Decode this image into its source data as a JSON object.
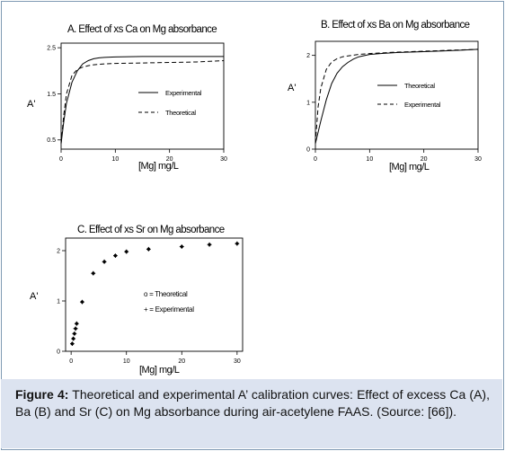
{
  "caption": {
    "label": "Figure 4:",
    "text": " Theoretical and experimental A’ calibration curves: Effect of excess Ca (A), Ba (B) and Sr (C) on Mg absorbance during air-acetylene FAAS. (Source: [66])."
  },
  "chart_data": [
    {
      "id": "A",
      "type": "line",
      "title": "A. Effect of xs Ca on Mg absorbance",
      "xlabel": "[Mg] mg/L",
      "ylabel": "A'",
      "xlim": [
        0,
        30
      ],
      "ylim": [
        0.3,
        2.6
      ],
      "xticks": [
        0,
        10,
        20,
        30
      ],
      "yticks": [
        0.5,
        1.5,
        2.5
      ],
      "xtick_labels": [
        "0",
        "10",
        "20",
        "30"
      ],
      "ytick_labels": [
        "0.5",
        "1.5",
        "2.5"
      ],
      "legend_position": "center-right",
      "series": [
        {
          "name": "Experimental",
          "style": "solid",
          "x": [
            0,
            0.5,
            1,
            2,
            3,
            4,
            5,
            6,
            7,
            8,
            10,
            15,
            20,
            25,
            30
          ],
          "y": [
            0.42,
            0.9,
            1.3,
            1.75,
            2.0,
            2.15,
            2.22,
            2.26,
            2.28,
            2.29,
            2.3,
            2.31,
            2.31,
            2.31,
            2.31
          ]
        },
        {
          "name": "Theoretical",
          "style": "dashed",
          "x": [
            0,
            0.5,
            1,
            2,
            3,
            4,
            5,
            6,
            8,
            10,
            15,
            20,
            25,
            30
          ],
          "y": [
            0.42,
            1.05,
            1.5,
            1.9,
            2.03,
            2.08,
            2.11,
            2.13,
            2.15,
            2.16,
            2.17,
            2.18,
            2.19,
            2.22
          ]
        }
      ]
    },
    {
      "id": "B",
      "type": "line",
      "title": "B. Effect of xs Ba on Mg absorbance",
      "xlabel": "[Mg] mg/L",
      "ylabel": "A'",
      "xlim": [
        0,
        30
      ],
      "ylim": [
        0,
        2.3
      ],
      "xticks": [
        0,
        10,
        20,
        30
      ],
      "yticks": [
        0,
        1,
        2
      ],
      "xtick_labels": [
        "0",
        "10",
        "20",
        "30"
      ],
      "ytick_labels": [
        "0",
        "1",
        "2"
      ],
      "legend_position": "center-right",
      "series": [
        {
          "name": "Theoretical",
          "style": "solid",
          "x": [
            0,
            1,
            2,
            3,
            4,
            5,
            6,
            7,
            8,
            10,
            12,
            15,
            20,
            25,
            30
          ],
          "y": [
            0.12,
            0.6,
            1.05,
            1.4,
            1.62,
            1.76,
            1.85,
            1.92,
            1.97,
            2.02,
            2.04,
            2.06,
            2.08,
            2.1,
            2.13
          ]
        },
        {
          "name": "Experimental",
          "style": "dashed",
          "x": [
            0,
            0.5,
            1,
            2,
            3,
            4,
            5,
            6,
            8,
            10,
            15,
            20,
            25,
            30
          ],
          "y": [
            0.12,
            0.9,
            1.3,
            1.7,
            1.86,
            1.93,
            1.97,
            1.99,
            2.02,
            2.04,
            2.07,
            2.09,
            2.11,
            2.13
          ]
        }
      ]
    },
    {
      "id": "C",
      "type": "scatter",
      "title": "C. Effect of xs Sr on Mg absorbance",
      "xlabel": "[Mg] mg/L",
      "ylabel": "A'",
      "xlim": [
        -1,
        31
      ],
      "ylim": [
        0,
        2.25
      ],
      "xticks": [
        0,
        10,
        20,
        30
      ],
      "yticks": [
        0,
        1,
        2
      ],
      "xtick_labels": [
        "0",
        "10",
        "20",
        "30"
      ],
      "ytick_labels": [
        "0",
        "1",
        "2"
      ],
      "legend_position": "center-right",
      "legend_labels": [
        "o = Theoretical",
        "+ = Experimental"
      ],
      "series": [
        {
          "name": "Theoretical",
          "marker": "o",
          "x": [
            0.2,
            0.4,
            0.6,
            0.8,
            1,
            2,
            4,
            6,
            8,
            10,
            14,
            20,
            25,
            30
          ],
          "y": [
            0.15,
            0.25,
            0.35,
            0.45,
            0.55,
            0.98,
            1.55,
            1.78,
            1.9,
            1.98,
            2.03,
            2.08,
            2.12,
            2.14
          ]
        },
        {
          "name": "Experimental",
          "marker": "+",
          "x": [
            0.2,
            0.4,
            0.6,
            0.8,
            1,
            2,
            4,
            6,
            8,
            10,
            14,
            20,
            25,
            30
          ],
          "y": [
            0.15,
            0.25,
            0.35,
            0.45,
            0.55,
            0.98,
            1.55,
            1.78,
            1.9,
            1.98,
            2.03,
            2.08,
            2.12,
            2.14
          ]
        }
      ]
    }
  ]
}
